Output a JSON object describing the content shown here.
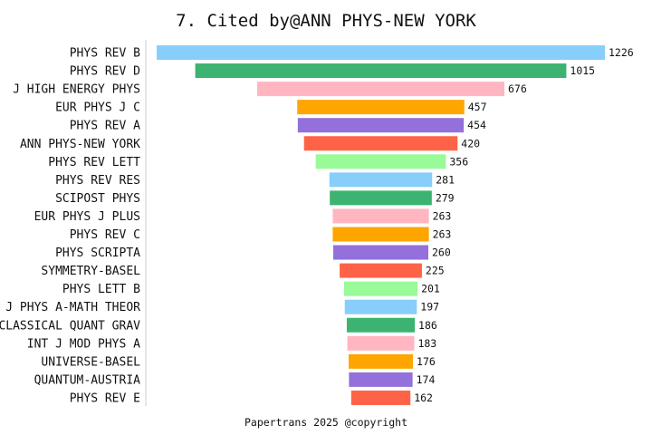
{
  "chart_data": {
    "type": "bar",
    "orientation": "horizontal-centered",
    "title": "7. Cited by@ANN PHYS-NEW YORK",
    "footer": "Papertrans 2025 @copyright",
    "categories": [
      "PHYS REV B",
      "PHYS REV D",
      "J HIGH ENERGY PHYS",
      "EUR PHYS J C",
      "PHYS REV A",
      "ANN PHYS-NEW YORK",
      "PHYS REV LETT",
      "PHYS REV RES",
      "SCIPOST PHYS",
      "EUR PHYS J PLUS",
      "PHYS REV C",
      "PHYS SCRIPTA",
      "SYMMETRY-BASEL",
      "PHYS LETT B",
      "J PHYS A-MATH THEOR",
      "CLASSICAL QUANT GRAV",
      "INT J MOD PHYS A",
      "UNIVERSE-BASEL",
      "QUANTUM-AUSTRIA",
      "PHYS REV E"
    ],
    "values": [
      1226,
      1015,
      676,
      457,
      454,
      420,
      356,
      281,
      279,
      263,
      263,
      260,
      225,
      201,
      197,
      186,
      183,
      176,
      174,
      162
    ],
    "value_labels": [
      "1226",
      "1015",
      "676",
      "457",
      "454",
      "420",
      "356",
      "281",
      "279",
      "263",
      "263",
      "260",
      "225",
      "201",
      "197",
      "186",
      "183",
      "176",
      "174",
      "162"
    ],
    "colors": [
      "#87CEFA",
      "#3CB371",
      "#FFB6C1",
      "#FFA500",
      "#9370DB",
      "#FF6347",
      "#98FB98"
    ],
    "grid": false,
    "legend": "none"
  }
}
